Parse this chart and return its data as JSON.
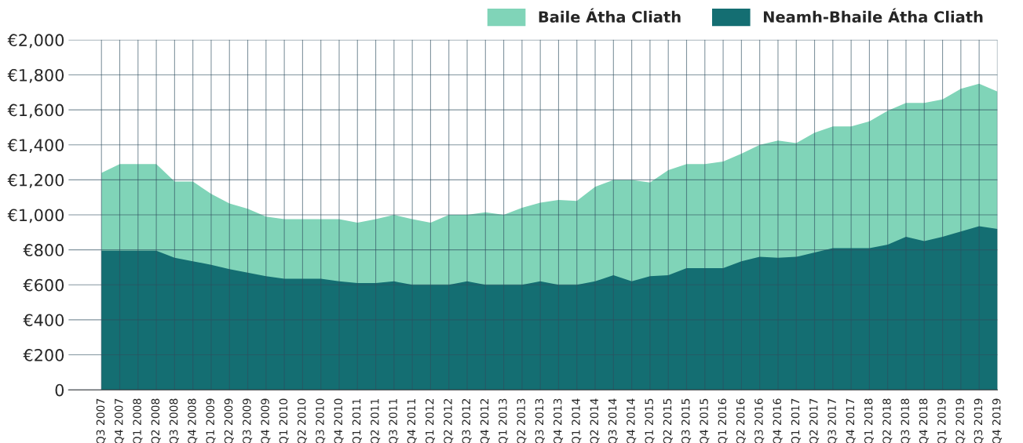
{
  "chart_data": {
    "type": "area",
    "categories": [
      "Q3 2007",
      "Q4 2007",
      "Q1 2008",
      "Q2 2008",
      "Q3 2008",
      "Q4 2008",
      "Q1 2009",
      "Q2 2009",
      "Q3 2009",
      "Q4 2009",
      "Q1 2010",
      "Q2 2010",
      "Q3 2010",
      "Q4 2010",
      "Q1 2011",
      "Q2 2011",
      "Q3 2011",
      "Q4 2011",
      "Q1 2012",
      "Q2 2012",
      "Q3 2012",
      "Q4 2012",
      "Q1 2013",
      "Q2 2013",
      "Q3 2013",
      "Q4 2013",
      "Q1 2014",
      "Q2 2014",
      "Q3 2014",
      "Q4 2014",
      "Q1 2015",
      "Q2 2015",
      "Q3 2015",
      "Q4 2015",
      "Q1 2016",
      "Q2 2016",
      "Q3 2016",
      "Q4 2016",
      "Q1 2017",
      "Q2 2017",
      "Q3 2017",
      "Q4 2017",
      "Q1 2018",
      "Q2 2018",
      "Q3 2018",
      "Q4 2018",
      "Q1 2019",
      "Q2 2019",
      "Q3 2019",
      "Q4 2019"
    ],
    "series": [
      {
        "name": "Baile Átha Cliath",
        "color": "#80d4b8",
        "values": [
          1240,
          1290,
          1290,
          1290,
          1190,
          1190,
          1120,
          1065,
          1035,
          990,
          975,
          975,
          975,
          975,
          955,
          975,
          1000,
          975,
          955,
          1000,
          1000,
          1015,
          1000,
          1040,
          1070,
          1085,
          1080,
          1160,
          1200,
          1200,
          1185,
          1255,
          1290,
          1290,
          1305,
          1350,
          1400,
          1425,
          1410,
          1470,
          1505,
          1505,
          1535,
          1595,
          1640,
          1640,
          1660,
          1720,
          1750,
          1705
        ]
      },
      {
        "name": "Neamh-Bhaile Átha Cliath",
        "color": "#146e72",
        "values": [
          795,
          795,
          795,
          795,
          755,
          735,
          715,
          690,
          670,
          650,
          635,
          635,
          635,
          620,
          610,
          610,
          620,
          600,
          600,
          600,
          620,
          600,
          600,
          600,
          620,
          600,
          600,
          620,
          655,
          620,
          650,
          655,
          695,
          695,
          695,
          735,
          760,
          755,
          760,
          785,
          810,
          810,
          810,
          830,
          875,
          850,
          875,
          905,
          935,
          920
        ]
      }
    ],
    "ylim": [
      0,
      2000
    ],
    "yticks": [
      0,
      {
        "value": 200,
        "label": "€200"
      },
      {
        "value": 400,
        "label": "€400"
      },
      {
        "value": 600,
        "label": "€600"
      },
      {
        "value": 800,
        "label": "€800"
      },
      {
        "value": 1000,
        "label": "€1,000"
      },
      {
        "value": 1200,
        "label": "€1,200"
      },
      {
        "value": 1400,
        "label": "€1,400"
      },
      {
        "value": 1600,
        "label": "€1,600"
      },
      {
        "value": 1800,
        "label": "€1,800"
      },
      {
        "value": 2000,
        "label": "€2,000"
      }
    ],
    "grid": true,
    "legend": "top right"
  }
}
